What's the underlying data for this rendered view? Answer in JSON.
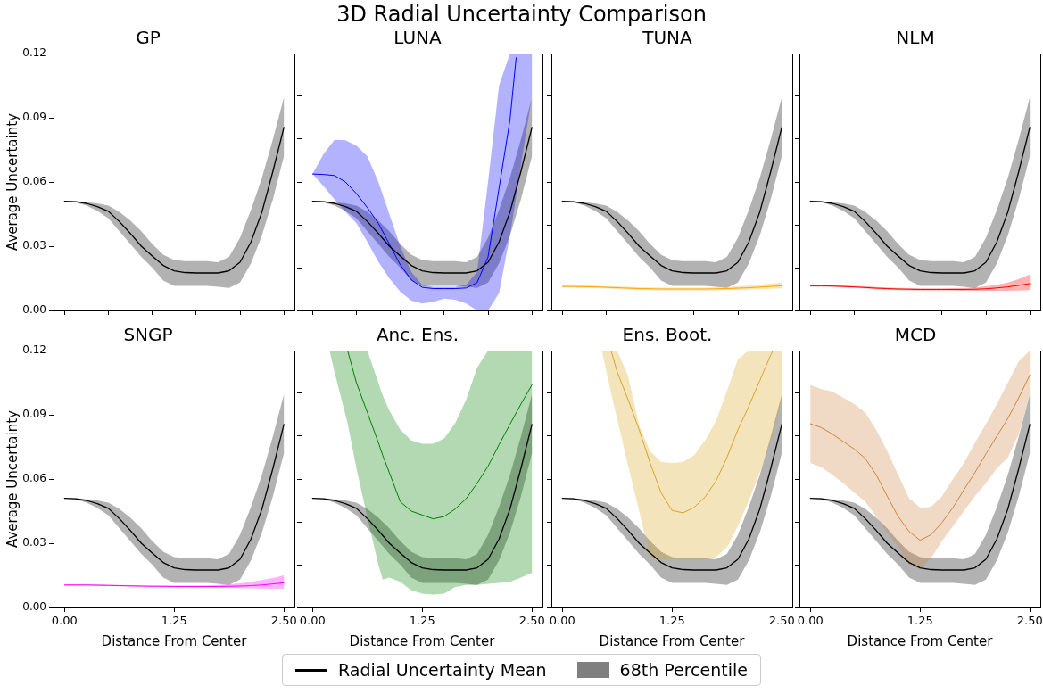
{
  "chart_data": [
    {
      "type": "line",
      "title": "GP",
      "ylabel": "Average Uncertainty",
      "xlim": [
        -0.125,
        2.62
      ],
      "ylim": [
        0,
        0.12
      ],
      "xticks": [
        0,
        0.5,
        1,
        1.5,
        2,
        2.5
      ],
      "yticks": [
        {
          "value": 0,
          "label": "0.00"
        },
        {
          "value": 0.03,
          "label": "0.03"
        },
        {
          "value": 0.06,
          "label": "0.06"
        },
        {
          "value": 0.09,
          "label": "0.09"
        },
        {
          "value": 0.12,
          "label": "0.12"
        }
      ],
      "tick_labels": "y",
      "legend": "bottom",
      "annotations": [
        "3D Radial Uncertainty Comparison",
        "68th Percentile"
      ],
      "x": [
        0,
        0.125,
        0.25,
        0.375,
        0.5,
        0.625,
        0.75,
        0.875,
        1,
        1.125,
        1.25,
        1.375,
        1.5,
        1.625,
        1.75,
        1.875,
        2,
        2.125,
        2.25,
        2.375,
        2.5
      ],
      "series": [
        {
          "name": "Radial Uncertainty Mean",
          "color": "#000000",
          "values": [
            0.051,
            0.0508,
            0.05,
            0.0485,
            0.0463,
            0.0415,
            0.036,
            0.03,
            0.0254,
            0.021,
            0.0185,
            0.0177,
            0.0175,
            0.0175,
            0.0175,
            0.0185,
            0.0225,
            0.032,
            0.046,
            0.065,
            0.0855
          ],
          "upper": [
            0.051,
            0.051,
            0.0505,
            0.05,
            0.049,
            0.046,
            0.042,
            0.037,
            0.031,
            0.026,
            0.0235,
            0.023,
            0.023,
            0.023,
            0.0225,
            0.025,
            0.034,
            0.047,
            0.062,
            0.08,
            0.0995
          ],
          "lower": [
            0.051,
            0.0505,
            0.049,
            0.0465,
            0.043,
            0.037,
            0.031,
            0.025,
            0.02,
            0.014,
            0.0115,
            0.0115,
            0.0115,
            0.0115,
            0.011,
            0.0105,
            0.013,
            0.022,
            0.035,
            0.052,
            0.072
          ]
        }
      ]
    },
    {
      "type": "line",
      "title": "LUNA",
      "xlim": [
        -0.125,
        2.62
      ],
      "ylim": [
        0,
        0.12
      ],
      "xticks": [
        0,
        0.5,
        1,
        1.5,
        2,
        2.5
      ],
      "yticks": [
        0,
        0.02,
        0.04,
        0.06,
        0.08,
        0.1,
        0.12
      ],
      "tick_labels": false,
      "x": [
        0,
        0.125,
        0.25,
        0.375,
        0.5,
        0.625,
        0.75,
        0.875,
        1,
        1.125,
        1.25,
        1.375,
        1.5,
        1.625,
        1.75,
        1.875,
        2,
        2.125,
        2.25,
        2.375,
        2.5
      ],
      "series": [
        {
          "color": "#000000",
          "values": [
            0.051,
            0.0508,
            0.05,
            0.0485,
            0.0463,
            0.0415,
            0.036,
            0.03,
            0.0254,
            0.021,
            0.0185,
            0.0177,
            0.0175,
            0.0175,
            0.0175,
            0.0185,
            0.0225,
            0.032,
            0.046,
            0.065,
            0.0855
          ],
          "upper": [
            0.051,
            0.051,
            0.0505,
            0.05,
            0.049,
            0.046,
            0.042,
            0.037,
            0.031,
            0.026,
            0.0235,
            0.023,
            0.023,
            0.023,
            0.0225,
            0.025,
            0.034,
            0.047,
            0.062,
            0.08,
            0.0995
          ],
          "lower": [
            0.051,
            0.0505,
            0.049,
            0.0465,
            0.043,
            0.037,
            0.031,
            0.025,
            0.02,
            0.014,
            0.0115,
            0.0115,
            0.0115,
            0.0115,
            0.011,
            0.0105,
            0.013,
            0.022,
            0.035,
            0.052,
            0.072
          ]
        },
        {
          "color": "#0000ff",
          "x": [
            0,
            0.125,
            0.25,
            0.375,
            0.5,
            0.625,
            0.75,
            0.875,
            1,
            1.125,
            1.25,
            1.375,
            1.5,
            1.625,
            1.75,
            1.875,
            2,
            2.125,
            2.25,
            2.32,
            2.375,
            2.5
          ],
          "values": [
            0.0637,
            0.0635,
            0.063,
            0.06,
            0.0546,
            0.048,
            0.0407,
            0.031,
            0.0213,
            0.0143,
            0.0108,
            0.0102,
            0.0102,
            0.0102,
            0.0105,
            0.013,
            0.025,
            0.057,
            0.089,
            0.118,
            null,
            null
          ],
          "upper": [
            0.0637,
            0.073,
            0.0797,
            0.0795,
            0.077,
            0.072,
            0.06,
            0.045,
            0.03,
            0.018,
            0.012,
            0.011,
            0.011,
            0.011,
            0.012,
            0.018,
            0.06,
            0.105,
            0.12,
            0.12,
            0.12,
            0.12
          ],
          "lower": [
            0.0637,
            0.058,
            0.0519,
            0.046,
            0.0407,
            0.032,
            0.0227,
            0.015,
            0.0088,
            0.0046,
            0.0032,
            0.004,
            0.0055,
            0.005,
            0.0032,
            0,
            0,
            0.008,
            0.035,
            0.053,
            0.068,
            0.1
          ]
        }
      ]
    },
    {
      "type": "line",
      "title": "TUNA",
      "xlim": [
        -0.125,
        2.62
      ],
      "ylim": [
        0,
        0.12
      ],
      "xticks": [
        0,
        0.5,
        1,
        1.5,
        2,
        2.5
      ],
      "yticks": [
        0,
        0.02,
        0.04,
        0.06,
        0.08,
        0.1,
        0.12
      ],
      "tick_labels": false,
      "x": [
        0,
        0.125,
        0.25,
        0.375,
        0.5,
        0.625,
        0.75,
        0.875,
        1,
        1.125,
        1.25,
        1.375,
        1.5,
        1.625,
        1.75,
        1.875,
        2,
        2.125,
        2.25,
        2.375,
        2.5
      ],
      "series": [
        {
          "color": "#000000",
          "values": [
            0.051,
            0.0508,
            0.05,
            0.0485,
            0.0463,
            0.0415,
            0.036,
            0.03,
            0.0254,
            0.021,
            0.0185,
            0.0177,
            0.0175,
            0.0175,
            0.0175,
            0.0185,
            0.0225,
            0.032,
            0.046,
            0.065,
            0.0855
          ],
          "upper": [
            0.051,
            0.051,
            0.0505,
            0.05,
            0.049,
            0.046,
            0.042,
            0.037,
            0.031,
            0.026,
            0.0235,
            0.023,
            0.023,
            0.023,
            0.0225,
            0.025,
            0.034,
            0.047,
            0.062,
            0.08,
            0.0995
          ],
          "lower": [
            0.051,
            0.0505,
            0.049,
            0.0465,
            0.043,
            0.037,
            0.031,
            0.025,
            0.02,
            0.014,
            0.0115,
            0.0115,
            0.0115,
            0.0115,
            0.011,
            0.0105,
            0.013,
            0.022,
            0.035,
            0.052,
            0.072
          ]
        },
        {
          "color": "#ffa500",
          "values": [
            0.0112,
            0.0112,
            0.0111,
            0.011,
            0.0108,
            0.0106,
            0.0104,
            0.0102,
            0.0101,
            0.01,
            0.01,
            0.01,
            0.01,
            0.01,
            0.0101,
            0.0102,
            0.0104,
            0.0106,
            0.0109,
            0.0112,
            0.0115
          ],
          "upper": [
            0.0118,
            0.0118,
            0.0117,
            0.0116,
            0.0114,
            0.0112,
            0.011,
            0.0108,
            0.0107,
            0.0106,
            0.0106,
            0.0106,
            0.0106,
            0.0106,
            0.0108,
            0.011,
            0.0113,
            0.0116,
            0.012,
            0.0125,
            0.013
          ],
          "lower": [
            0.0106,
            0.0106,
            0.0105,
            0.0104,
            0.0102,
            0.01,
            0.0098,
            0.0096,
            0.0095,
            0.0094,
            0.0094,
            0.0094,
            0.0094,
            0.0094,
            0.0094,
            0.0095,
            0.0096,
            0.0097,
            0.0099,
            0.0101,
            0.0103
          ]
        }
      ]
    },
    {
      "type": "line",
      "title": "NLM",
      "xlim": [
        -0.125,
        2.62
      ],
      "ylim": [
        0,
        0.12
      ],
      "xticks": [
        0,
        0.5,
        1,
        1.5,
        2,
        2.5
      ],
      "yticks": [
        0,
        0.02,
        0.04,
        0.06,
        0.08,
        0.1,
        0.12
      ],
      "tick_labels": false,
      "x": [
        0,
        0.125,
        0.25,
        0.375,
        0.5,
        0.625,
        0.75,
        0.875,
        1,
        1.125,
        1.25,
        1.375,
        1.5,
        1.625,
        1.75,
        1.875,
        2,
        2.125,
        2.25,
        2.375,
        2.5
      ],
      "series": [
        {
          "color": "#000000",
          "values": [
            0.051,
            0.0508,
            0.05,
            0.0485,
            0.0463,
            0.0415,
            0.036,
            0.03,
            0.0254,
            0.021,
            0.0185,
            0.0177,
            0.0175,
            0.0175,
            0.0175,
            0.0185,
            0.0225,
            0.032,
            0.046,
            0.065,
            0.0855
          ],
          "upper": [
            0.051,
            0.051,
            0.0505,
            0.05,
            0.049,
            0.046,
            0.042,
            0.037,
            0.031,
            0.026,
            0.0235,
            0.023,
            0.023,
            0.023,
            0.0225,
            0.025,
            0.034,
            0.047,
            0.062,
            0.08,
            0.0995
          ],
          "lower": [
            0.051,
            0.0505,
            0.049,
            0.0465,
            0.043,
            0.037,
            0.031,
            0.025,
            0.02,
            0.014,
            0.0115,
            0.0115,
            0.0115,
            0.0115,
            0.011,
            0.0105,
            0.013,
            0.022,
            0.035,
            0.052,
            0.072
          ]
        },
        {
          "color": "#ff0000",
          "values": [
            0.0115,
            0.0115,
            0.0114,
            0.0112,
            0.011,
            0.0107,
            0.0104,
            0.0102,
            0.01,
            0.0099,
            0.0098,
            0.0098,
            0.0098,
            0.0098,
            0.0098,
            0.0099,
            0.0101,
            0.0105,
            0.011,
            0.0117,
            0.0125
          ],
          "upper": [
            0.012,
            0.012,
            0.0119,
            0.0117,
            0.0115,
            0.0112,
            0.0109,
            0.0107,
            0.0105,
            0.0104,
            0.0103,
            0.0103,
            0.0103,
            0.0104,
            0.0105,
            0.0108,
            0.0113,
            0.012,
            0.013,
            0.0147,
            0.0168
          ],
          "lower": [
            0.011,
            0.011,
            0.0109,
            0.0107,
            0.0105,
            0.0102,
            0.0099,
            0.0097,
            0.0095,
            0.0094,
            0.0093,
            0.0093,
            0.0093,
            0.0093,
            0.0092,
            0.0092,
            0.0092,
            0.0092,
            0.0092,
            0.0093,
            0.0095
          ]
        }
      ]
    },
    {
      "type": "line",
      "title": "SNGP",
      "xlabel": "Distance From Center",
      "ylabel": "Average Uncertainty",
      "xlim": [
        -0.125,
        2.62
      ],
      "ylim": [
        0,
        0.12
      ],
      "xticks": [
        {
          "value": 0,
          "label": "0.00"
        },
        {
          "value": 1.25,
          "label": "1.25"
        },
        {
          "value": 2.5,
          "label": "2.50"
        }
      ],
      "yticks": [
        {
          "value": 0,
          "label": "0.00"
        },
        {
          "value": 0.03,
          "label": "0.03"
        },
        {
          "value": 0.06,
          "label": "0.06"
        },
        {
          "value": 0.09,
          "label": "0.09"
        },
        {
          "value": 0.12,
          "label": "0.12"
        }
      ],
      "x": [
        0,
        0.125,
        0.25,
        0.375,
        0.5,
        0.625,
        0.75,
        0.875,
        1,
        1.125,
        1.25,
        1.375,
        1.5,
        1.625,
        1.75,
        1.875,
        2,
        2.125,
        2.25,
        2.375,
        2.5
      ],
      "series": [
        {
          "color": "#000000",
          "values": [
            0.051,
            0.0508,
            0.05,
            0.0485,
            0.0463,
            0.0415,
            0.036,
            0.03,
            0.0254,
            0.021,
            0.0185,
            0.0177,
            0.0175,
            0.0175,
            0.0175,
            0.0185,
            0.0225,
            0.032,
            0.046,
            0.065,
            0.0855
          ],
          "upper": [
            0.051,
            0.051,
            0.0505,
            0.05,
            0.049,
            0.046,
            0.042,
            0.037,
            0.031,
            0.026,
            0.0235,
            0.023,
            0.023,
            0.023,
            0.0225,
            0.025,
            0.034,
            0.047,
            0.062,
            0.08,
            0.0995
          ],
          "lower": [
            0.051,
            0.0505,
            0.049,
            0.0465,
            0.043,
            0.037,
            0.031,
            0.025,
            0.02,
            0.014,
            0.0115,
            0.0115,
            0.0115,
            0.0115,
            0.011,
            0.0105,
            0.013,
            0.022,
            0.035,
            0.052,
            0.072
          ]
        },
        {
          "color": "#ff00ff",
          "values": [
            0.0105,
            0.0105,
            0.0105,
            0.0104,
            0.0103,
            0.0102,
            0.0101,
            0.01,
            0.0099,
            0.0099,
            0.0098,
            0.0098,
            0.0098,
            0.0098,
            0.0098,
            0.0099,
            0.01,
            0.0102,
            0.0105,
            0.011,
            0.0115
          ],
          "upper": [
            0.0108,
            0.0108,
            0.0108,
            0.0107,
            0.0106,
            0.0105,
            0.0104,
            0.0103,
            0.0102,
            0.0102,
            0.0102,
            0.0102,
            0.0102,
            0.0103,
            0.0105,
            0.0108,
            0.0113,
            0.012,
            0.0128,
            0.0138,
            0.015
          ],
          "lower": [
            0.0102,
            0.0102,
            0.0102,
            0.0101,
            0.01,
            0.0099,
            0.0098,
            0.0097,
            0.0096,
            0.0096,
            0.0095,
            0.0095,
            0.0094,
            0.0094,
            0.0093,
            0.0092,
            0.0091,
            0.009,
            0.0089,
            0.0088,
            0.0088
          ]
        }
      ]
    },
    {
      "type": "line",
      "title": "Anc. Ens.",
      "xlabel": "Distance From Center",
      "xlim": [
        -0.125,
        2.62
      ],
      "ylim": [
        0,
        0.12
      ],
      "xticks": [
        {
          "value": 0,
          "label": "0.00"
        },
        {
          "value": 1.25,
          "label": "1.25"
        },
        {
          "value": 2.5,
          "label": "2.50"
        }
      ],
      "yticks": [
        0,
        0.02,
        0.04,
        0.06,
        0.08,
        0.1,
        0.12
      ],
      "tick_labels": "x",
      "x": [
        0,
        0.125,
        0.25,
        0.375,
        0.5,
        0.625,
        0.75,
        0.875,
        1,
        1.125,
        1.25,
        1.375,
        1.5,
        1.625,
        1.75,
        1.875,
        2,
        2.125,
        2.25,
        2.375,
        2.5
      ],
      "series": [
        {
          "color": "#000000",
          "values": [
            0.051,
            0.0508,
            0.05,
            0.0485,
            0.0463,
            0.0415,
            0.036,
            0.03,
            0.0254,
            0.021,
            0.0185,
            0.0177,
            0.0175,
            0.0175,
            0.0175,
            0.0185,
            0.0225,
            0.032,
            0.046,
            0.065,
            0.0855
          ],
          "upper": [
            0.051,
            0.051,
            0.0505,
            0.05,
            0.049,
            0.046,
            0.042,
            0.037,
            0.031,
            0.026,
            0.0235,
            0.023,
            0.023,
            0.023,
            0.0225,
            0.025,
            0.034,
            0.047,
            0.062,
            0.08,
            0.0995
          ],
          "lower": [
            0.051,
            0.0505,
            0.049,
            0.0465,
            0.043,
            0.037,
            0.031,
            0.025,
            0.02,
            0.014,
            0.0115,
            0.0115,
            0.0115,
            0.0115,
            0.011,
            0.0105,
            0.013,
            0.022,
            0.035,
            0.052,
            0.072
          ]
        },
        {
          "color": "#008000",
          "x": [
            0.2,
            0.25,
            0.375,
            0.4,
            0.5,
            0.625,
            0.75,
            0.8,
            0.875,
            1,
            1.125,
            1.25,
            1.375,
            1.5,
            1.625,
            1.75,
            1.875,
            2,
            2.125,
            2.25,
            2.375,
            2.5
          ],
          "values": [
            null,
            null,
            null,
            0.12,
            0.105,
            0.091,
            0.077,
            0.071,
            0.063,
            0.0494,
            0.045,
            0.0432,
            0.0414,
            0.0425,
            0.046,
            0.0508,
            0.058,
            0.066,
            0.076,
            0.0856,
            0.095,
            0.104
          ],
          "upper": [
            0.12,
            0.12,
            0.12,
            0.12,
            0.12,
            0.12,
            0.105,
            0.099,
            0.092,
            0.083,
            0.078,
            0.0765,
            0.0765,
            0.079,
            0.086,
            0.097,
            0.112,
            0.12,
            0.12,
            0.12,
            0.12,
            0.12
          ],
          "lower": [
            0.119,
            0.11,
            0.09,
            0.086,
            0.065,
            0.042,
            0.02,
            0.013,
            0.014,
            0.012,
            0.008,
            0.0065,
            0.006,
            0.0065,
            0.0095,
            0.0105,
            0.0105,
            0.011,
            0.0115,
            0.012,
            0.014,
            0.0163
          ]
        }
      ]
    },
    {
      "type": "line",
      "title": "Ens. Boot.",
      "xlabel": "Distance From Center",
      "xlim": [
        -0.125,
        2.62
      ],
      "ylim": [
        0,
        0.12
      ],
      "xticks": [
        {
          "value": 0,
          "label": "0.00"
        },
        {
          "value": 1.25,
          "label": "1.25"
        },
        {
          "value": 2.5,
          "label": "2.50"
        }
      ],
      "yticks": [
        0,
        0.02,
        0.04,
        0.06,
        0.08,
        0.1,
        0.12
      ],
      "tick_labels": "x",
      "x": [
        0,
        0.125,
        0.25,
        0.375,
        0.5,
        0.625,
        0.75,
        0.875,
        1,
        1.125,
        1.25,
        1.375,
        1.5,
        1.625,
        1.75,
        1.875,
        2,
        2.125,
        2.25,
        2.375,
        2.5
      ],
      "series": [
        {
          "color": "#000000",
          "values": [
            0.051,
            0.0508,
            0.05,
            0.0485,
            0.0463,
            0.0415,
            0.036,
            0.03,
            0.0254,
            0.021,
            0.0185,
            0.0177,
            0.0175,
            0.0175,
            0.0175,
            0.0185,
            0.0225,
            0.032,
            0.046,
            0.065,
            0.0855
          ],
          "upper": [
            0.051,
            0.051,
            0.0505,
            0.05,
            0.049,
            0.046,
            0.042,
            0.037,
            0.031,
            0.026,
            0.0235,
            0.023,
            0.023,
            0.023,
            0.0225,
            0.025,
            0.034,
            0.047,
            0.062,
            0.08,
            0.0995
          ],
          "lower": [
            0.051,
            0.0505,
            0.049,
            0.0465,
            0.043,
            0.037,
            0.031,
            0.025,
            0.02,
            0.014,
            0.0115,
            0.0115,
            0.0115,
            0.0115,
            0.011,
            0.0105,
            0.013,
            0.022,
            0.035,
            0.052,
            0.072
          ]
        },
        {
          "color": "#daa520",
          "x": [
            0.45,
            0.5,
            0.555,
            0.625,
            0.75,
            0.875,
            1,
            1.125,
            1.25,
            1.375,
            1.5,
            1.625,
            1.75,
            1.875,
            2,
            2.125,
            2.25,
            2.375,
            2.4,
            2.5
          ],
          "values": [
            null,
            null,
            0.12,
            0.11,
            0.097,
            0.083,
            0.0675,
            0.0536,
            0.0453,
            0.0442,
            0.0467,
            0.0515,
            0.059,
            0.07,
            0.083,
            0.094,
            0.106,
            0.118,
            0.12,
            null
          ],
          "upper": [
            0.12,
            0.12,
            0.12,
            0.12,
            0.108,
            0.085,
            0.073,
            0.068,
            0.0675,
            0.068,
            0.071,
            0.078,
            0.087,
            0.101,
            0.116,
            0.12,
            0.12,
            0.12,
            0.12,
            0.12
          ],
          "lower": [
            0.12,
            0.1106,
            0.1,
            0.088,
            0.066,
            0.045,
            0.0235,
            0.0225,
            0.0225,
            0.0225,
            0.0225,
            0.0225,
            0.0235,
            0.028,
            0.038,
            0.05,
            0.063,
            0.078,
            0.081,
            0.097
          ]
        }
      ]
    },
    {
      "type": "line",
      "title": "MCD",
      "xlabel": "Distance From Center",
      "xlim": [
        -0.125,
        2.62
      ],
      "ylim": [
        0,
        0.12
      ],
      "xticks": [
        {
          "value": 0,
          "label": "0.00"
        },
        {
          "value": 1.25,
          "label": "1.25"
        },
        {
          "value": 2.5,
          "label": "2.50"
        }
      ],
      "yticks": [
        0,
        0.02,
        0.04,
        0.06,
        0.08,
        0.1,
        0.12
      ],
      "tick_labels": "x",
      "x": [
        0,
        0.125,
        0.25,
        0.375,
        0.5,
        0.625,
        0.75,
        0.875,
        1,
        1.125,
        1.25,
        1.375,
        1.5,
        1.625,
        1.75,
        1.875,
        2,
        2.125,
        2.25,
        2.375,
        2.5
      ],
      "series": [
        {
          "color": "#000000",
          "values": [
            0.051,
            0.0508,
            0.05,
            0.0485,
            0.0463,
            0.0415,
            0.036,
            0.03,
            0.0254,
            0.021,
            0.0185,
            0.0177,
            0.0175,
            0.0175,
            0.0175,
            0.0185,
            0.0225,
            0.032,
            0.046,
            0.065,
            0.0855
          ],
          "upper": [
            0.051,
            0.051,
            0.0505,
            0.05,
            0.049,
            0.046,
            0.042,
            0.037,
            0.031,
            0.026,
            0.0235,
            0.023,
            0.023,
            0.023,
            0.0225,
            0.025,
            0.034,
            0.047,
            0.062,
            0.08,
            0.0995
          ],
          "lower": [
            0.051,
            0.0505,
            0.049,
            0.0465,
            0.043,
            0.037,
            0.031,
            0.025,
            0.02,
            0.014,
            0.0115,
            0.0115,
            0.0115,
            0.0115,
            0.011,
            0.0105,
            0.013,
            0.022,
            0.035,
            0.052,
            0.072
          ]
        },
        {
          "color": "#cd853f",
          "values": [
            0.0858,
            0.084,
            0.081,
            0.0775,
            0.074,
            0.0696,
            0.062,
            0.052,
            0.0425,
            0.0355,
            0.0314,
            0.034,
            0.0397,
            0.0467,
            0.055,
            0.063,
            0.0717,
            0.08,
            0.0883,
            0.098,
            0.1085
          ],
          "upper": [
            0.104,
            0.102,
            0.1008,
            0.098,
            0.095,
            0.091,
            0.083,
            0.073,
            0.062,
            0.051,
            0.0467,
            0.047,
            0.052,
            0.06,
            0.0675,
            0.077,
            0.0856,
            0.095,
            0.105,
            0.115,
            0.12
          ],
          "lower": [
            0.0675,
            0.0655,
            0.062,
            0.058,
            0.0536,
            0.0495,
            0.0425,
            0.035,
            0.0286,
            0.02,
            0.018,
            0.023,
            0.031,
            0.038,
            0.045,
            0.052,
            0.058,
            0.065,
            0.07,
            0.081,
            0.0995
          ]
        }
      ]
    }
  ]
}
